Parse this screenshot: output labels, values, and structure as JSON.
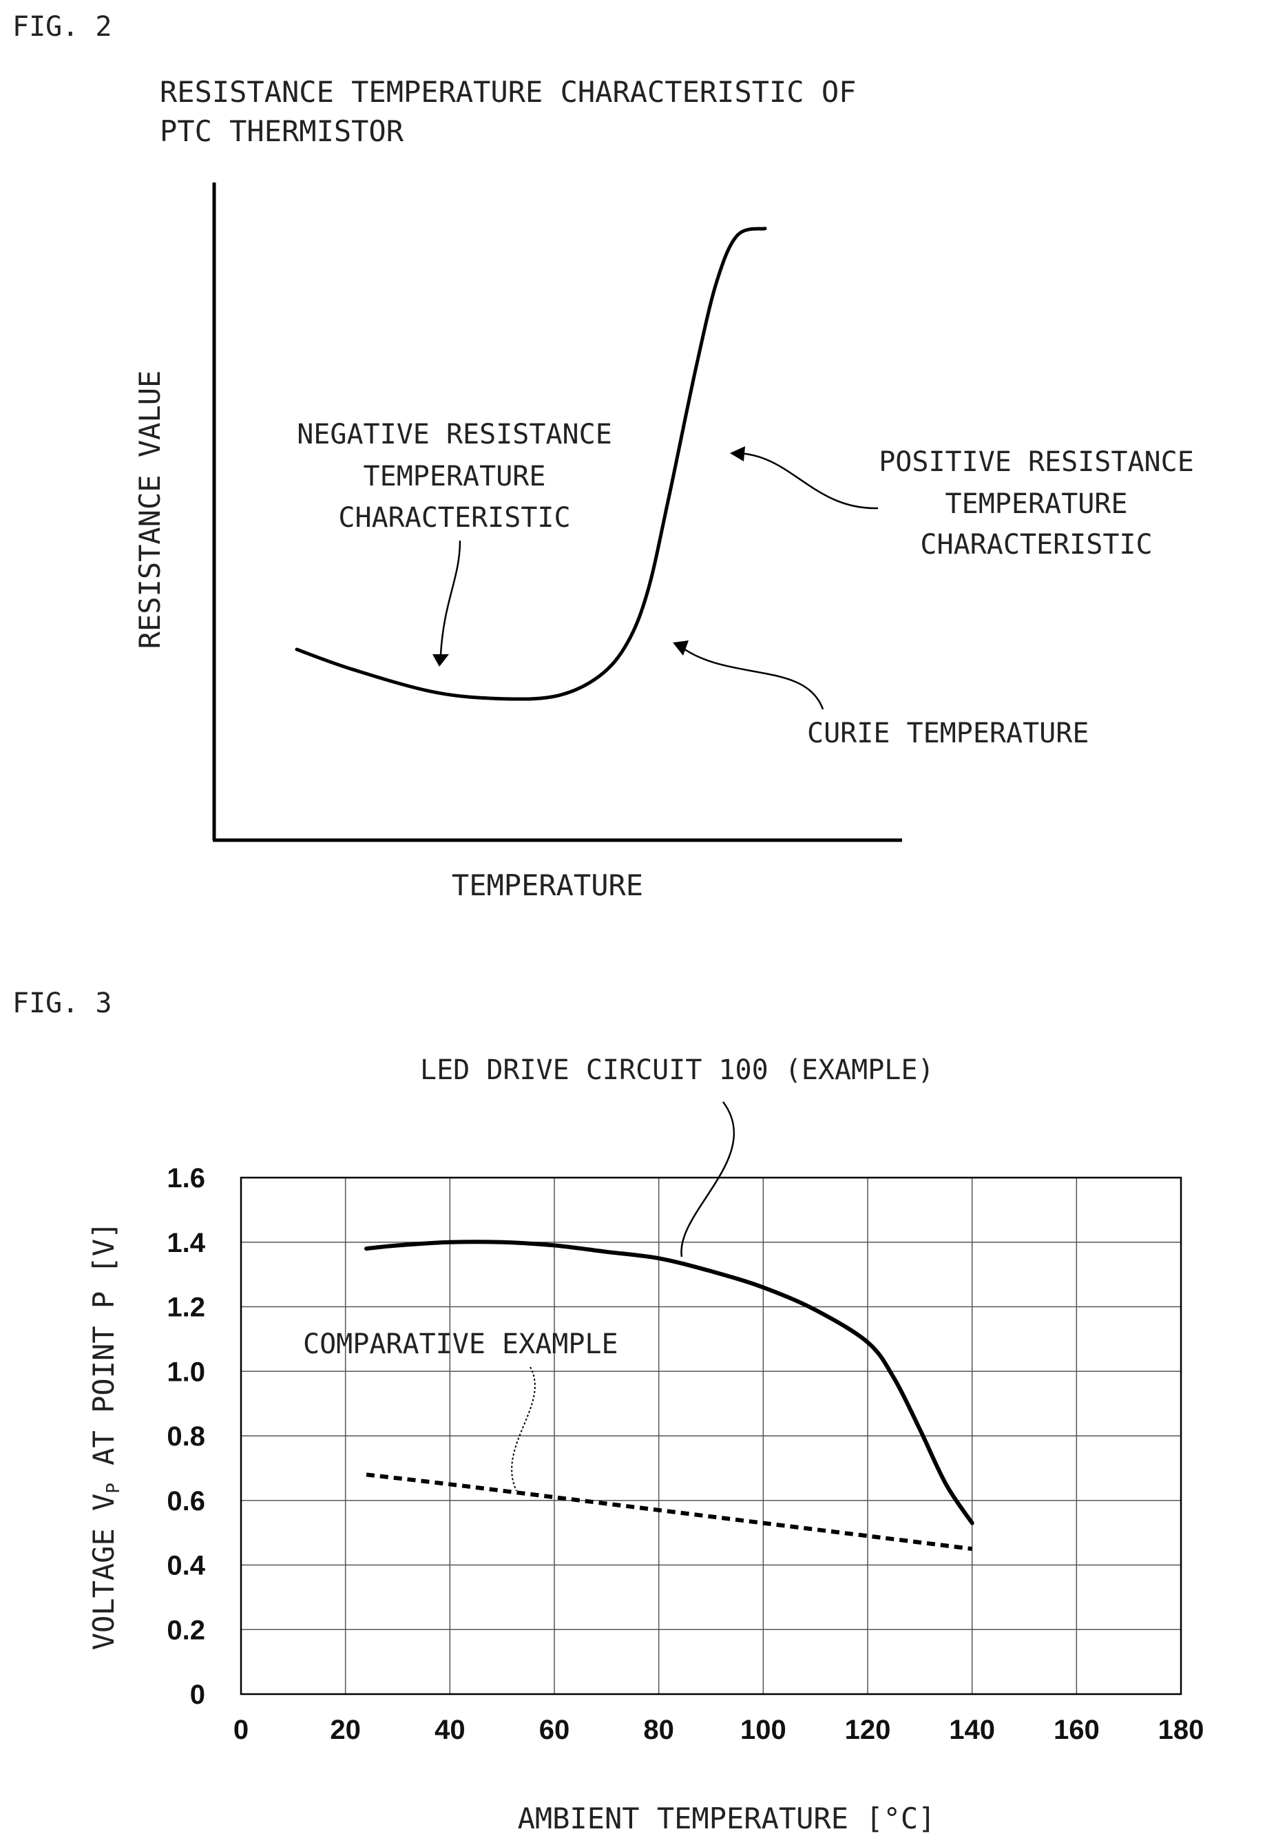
{
  "fig2": {
    "fig_label": "FIG. 2",
    "title_line1": "RESISTANCE TEMPERATURE CHARACTERISTIC OF",
    "title_line2": "PTC THERMISTOR",
    "ylabel": "RESISTANCE VALUE",
    "xlabel": "TEMPERATURE",
    "annotations": {
      "negative_line1": "NEGATIVE RESISTANCE",
      "negative_line2": "TEMPERATURE",
      "negative_line3": "CHARACTERISTIC",
      "positive_line1": "POSITIVE RESISTANCE",
      "positive_line2": "TEMPERATURE",
      "positive_line3": "CHARACTERISTIC",
      "curie": "CURIE TEMPERATURE"
    }
  },
  "fig3": {
    "fig_label": "FIG. 3",
    "ylabel_prefix": "VOLTAGE V",
    "ylabel_sub": "P",
    "ylabel_suffix": " AT POINT P [V]",
    "xlabel": "AMBIENT TEMPERATURE [°C]",
    "annotations": {
      "example": "LED DRIVE CIRCUIT 100 (EXAMPLE)",
      "comparative": "COMPARATIVE EXAMPLE"
    }
  },
  "chart_data": [
    {
      "type": "line",
      "title": "RESISTANCE TEMPERATURE CHARACTERISTIC OF PTC THERMISTOR",
      "xlabel": "TEMPERATURE",
      "ylabel": "RESISTANCE VALUE",
      "axis_ticks": false,
      "grid": false,
      "series": [
        {
          "x": [
            0.12,
            0.2,
            0.32,
            0.42,
            0.5,
            0.56,
            0.6,
            0.63,
            0.66,
            0.7,
            0.73,
            0.76,
            0.8
          ],
          "values": [
            0.29,
            0.26,
            0.225,
            0.215,
            0.22,
            0.25,
            0.3,
            0.38,
            0.52,
            0.72,
            0.85,
            0.92,
            0.93
          ]
        }
      ],
      "xlim": [
        0,
        1
      ],
      "ylim": [
        0,
        1
      ]
    },
    {
      "type": "line",
      "xlabel": "AMBIENT TEMPERATURE [°C]",
      "ylabel": "VOLTAGE VP AT POINT P [V]",
      "xlim": [
        0,
        180
      ],
      "ylim": [
        0,
        1.6
      ],
      "x_ticks": [
        0,
        20,
        40,
        60,
        80,
        100,
        120,
        140,
        160,
        180
      ],
      "y_ticks": [
        0,
        0.2,
        0.4,
        0.6,
        0.8,
        1.0,
        1.2,
        1.4,
        1.6
      ],
      "y_tick_labels": [
        "0",
        "0.2",
        "0.4",
        "0.6",
        "0.8",
        "1.0",
        "1.2",
        "1.4",
        "1.6"
      ],
      "grid": true,
      "series": [
        {
          "name": "LED DRIVE CIRCUIT 100 (EXAMPLE)",
          "style": "solid",
          "x": [
            24,
            30,
            40,
            50,
            60,
            70,
            80,
            90,
            100,
            110,
            120,
            125,
            130,
            135,
            140
          ],
          "values": [
            1.38,
            1.39,
            1.4,
            1.4,
            1.39,
            1.37,
            1.35,
            1.31,
            1.26,
            1.19,
            1.09,
            0.98,
            0.82,
            0.65,
            0.53
          ]
        },
        {
          "name": "COMPARATIVE EXAMPLE",
          "style": "dashed",
          "x": [
            24,
            40,
            60,
            80,
            100,
            120,
            140
          ],
          "values": [
            0.68,
            0.65,
            0.61,
            0.57,
            0.53,
            0.49,
            0.45
          ]
        }
      ]
    }
  ]
}
